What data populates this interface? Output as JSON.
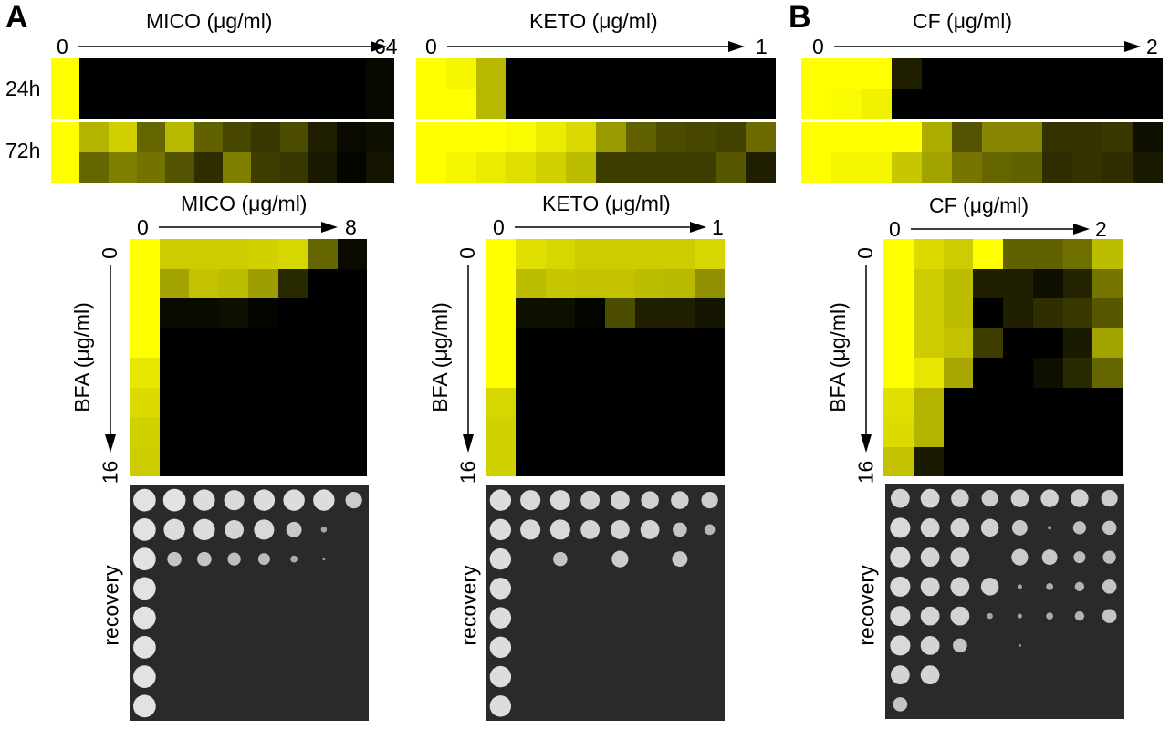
{
  "panels": {
    "a": "A",
    "b": "B"
  },
  "top": {
    "mico": {
      "title": "MICO (μg/ml)",
      "min": "0",
      "max": "64"
    },
    "keto": {
      "title": "KETO (μg/ml)",
      "min": "0",
      "max": "1"
    },
    "cf": {
      "title": "CF (μg/ml)",
      "min": "0",
      "max": "2"
    },
    "rows": [
      "24h",
      "72h"
    ]
  },
  "bottom": {
    "mico": {
      "title": "MICO (μg/ml)",
      "min": "0",
      "max": "8"
    },
    "keto": {
      "title": "KETO (μg/ml)",
      "min": "0",
      "max": "1"
    },
    "cf": {
      "title": "CF (μg/ml)",
      "min": "0",
      "max": "2"
    },
    "bfa": {
      "label": "BFA (μg/ml)",
      "min": "0",
      "max": "16"
    },
    "recovery": "recovery"
  },
  "colors": {
    "high_growth": "#ffff00",
    "no_growth": "#000000",
    "plate_bg": "#2a2a2a",
    "colony": "#e6e6e6"
  },
  "chart_data": [
    {
      "type": "heatmap",
      "drug": "MICO",
      "time": "24h",
      "values": [
        [
          1,
          0,
          0,
          0,
          0,
          0,
          0,
          0,
          0,
          0,
          0,
          0.03
        ],
        [
          1,
          0,
          0,
          0,
          0,
          0,
          0,
          0,
          0,
          0,
          0,
          0.03
        ]
      ]
    },
    {
      "type": "heatmap",
      "drug": "MICO",
      "time": "72h",
      "values": [
        [
          1,
          0.7,
          0.82,
          0.4,
          0.72,
          0.38,
          0.28,
          0.22,
          0.3,
          0.12,
          0.04,
          0.06
        ],
        [
          1,
          0.4,
          0.5,
          0.45,
          0.32,
          0.18,
          0.5,
          0.24,
          0.22,
          0.1,
          0.02,
          0.08
        ]
      ]
    },
    {
      "type": "heatmap",
      "drug": "KETO",
      "time": "24h",
      "values": [
        [
          1,
          0.96,
          0.72,
          0,
          0,
          0,
          0,
          0,
          0,
          0,
          0,
          0
        ],
        [
          1,
          1,
          0.72,
          0,
          0,
          0,
          0,
          0,
          0,
          0,
          0,
          0
        ]
      ]
    },
    {
      "type": "heatmap",
      "drug": "KETO",
      "time": "72h",
      "values": [
        [
          1,
          1,
          1,
          0.98,
          0.92,
          0.85,
          0.6,
          0.38,
          0.3,
          0.28,
          0.26,
          0.42
        ],
        [
          1,
          0.96,
          0.92,
          0.88,
          0.82,
          0.74,
          0.24,
          0.24,
          0.24,
          0.24,
          0.34,
          0.12
        ]
      ]
    },
    {
      "type": "heatmap",
      "drug": "CF",
      "time": "24h",
      "values": [
        [
          1,
          1,
          1,
          0.12,
          0,
          0,
          0,
          0,
          0,
          0,
          0,
          0
        ],
        [
          1,
          0.98,
          0.94,
          0,
          0,
          0,
          0,
          0,
          0,
          0,
          0,
          0
        ]
      ]
    },
    {
      "type": "heatmap",
      "drug": "CF",
      "time": "72h",
      "values": [
        [
          1,
          1,
          1,
          1,
          0.68,
          0.32,
          0.52,
          0.52,
          0.2,
          0.2,
          0.22,
          0.06
        ],
        [
          1,
          0.96,
          0.96,
          0.78,
          0.64,
          0.46,
          0.4,
          0.38,
          0.18,
          0.2,
          0.18,
          0.1
        ]
      ]
    },
    {
      "type": "heatmap",
      "drug": "MICO",
      "cross": "BFA",
      "values": [
        [
          1,
          0.8,
          0.8,
          0.8,
          0.82,
          0.84,
          0.4,
          0.04
        ],
        [
          1,
          0.64,
          0.76,
          0.74,
          0.62,
          0.16,
          0,
          0
        ],
        [
          1,
          0.04,
          0.04,
          0.06,
          0.02,
          0,
          0,
          0
        ],
        [
          1,
          0,
          0,
          0,
          0,
          0,
          0,
          0
        ],
        [
          0.9,
          0,
          0,
          0,
          0,
          0,
          0,
          0
        ],
        [
          0.86,
          0,
          0,
          0,
          0,
          0,
          0,
          0
        ],
        [
          0.82,
          0,
          0,
          0,
          0,
          0,
          0,
          0
        ],
        [
          0.8,
          0,
          0,
          0,
          0,
          0,
          0,
          0
        ]
      ]
    },
    {
      "type": "heatmap",
      "drug": "KETO",
      "cross": "BFA",
      "values": [
        [
          1,
          0.88,
          0.84,
          0.8,
          0.8,
          0.8,
          0.8,
          0.84
        ],
        [
          1,
          0.74,
          0.78,
          0.76,
          0.76,
          0.74,
          0.72,
          0.56
        ],
        [
          1,
          0.06,
          0.06,
          0.02,
          0.3,
          0.12,
          0.12,
          0.08
        ],
        [
          1,
          0,
          0,
          0,
          0,
          0,
          0,
          0
        ],
        [
          1,
          0,
          0,
          0,
          0,
          0,
          0,
          0
        ],
        [
          0.84,
          0,
          0,
          0,
          0,
          0,
          0,
          0
        ],
        [
          0.82,
          0,
          0,
          0,
          0,
          0,
          0,
          0
        ],
        [
          0.82,
          0,
          0,
          0,
          0,
          0,
          0,
          0
        ]
      ]
    },
    {
      "type": "heatmap",
      "drug": "CF",
      "cross": "BFA",
      "values": [
        [
          1,
          0.86,
          0.8,
          1,
          0.38,
          0.38,
          0.44,
          0.74
        ],
        [
          1,
          0.8,
          0.74,
          0.12,
          0.12,
          0.06,
          0.14,
          0.46
        ],
        [
          1,
          0.8,
          0.74,
          0,
          0.12,
          0.18,
          0.22,
          0.34
        ],
        [
          1,
          0.8,
          0.76,
          0.24,
          0,
          0,
          0.1,
          0.64
        ],
        [
          1,
          0.9,
          0.66,
          0,
          0,
          0.06,
          0.16,
          0.4
        ],
        [
          0.88,
          0.7,
          0,
          0,
          0,
          0,
          0,
          0
        ],
        [
          0.86,
          0.7,
          0,
          0,
          0,
          0,
          0,
          0
        ],
        [
          0.76,
          0.1,
          0,
          0,
          0,
          0,
          0,
          0
        ]
      ]
    },
    {
      "type": "table",
      "drug": "MICO",
      "content": "recovery plate colony size (0-1)",
      "values": [
        [
          0.95,
          0.95,
          0.9,
          0.85,
          0.9,
          0.9,
          0.9,
          0.7
        ],
        [
          0.95,
          0.9,
          0.9,
          0.8,
          0.85,
          0.65,
          0.25,
          0
        ],
        [
          0.95,
          0.6,
          0.6,
          0.55,
          0.5,
          0.3,
          0.1,
          0
        ],
        [
          0.95,
          0,
          0,
          0,
          0,
          0,
          0,
          0
        ],
        [
          0.95,
          0,
          0,
          0,
          0,
          0,
          0,
          0
        ],
        [
          0.95,
          0,
          0,
          0,
          0,
          0,
          0,
          0
        ],
        [
          0.95,
          0,
          0,
          0,
          0,
          0,
          0,
          0
        ],
        [
          0.95,
          0,
          0,
          0,
          0,
          0,
          0,
          0
        ]
      ]
    },
    {
      "type": "table",
      "drug": "KETO",
      "content": "recovery plate colony size (0-1)",
      "values": [
        [
          0.9,
          0.85,
          0.85,
          0.8,
          0.8,
          0.75,
          0.75,
          0.7
        ],
        [
          0.9,
          0.85,
          0.85,
          0.8,
          0.8,
          0.8,
          0.6,
          0.45
        ],
        [
          0.9,
          0,
          0.6,
          0,
          0.7,
          0,
          0.65,
          0
        ],
        [
          0.9,
          0,
          0,
          0,
          0,
          0,
          0,
          0
        ],
        [
          0.9,
          0,
          0,
          0,
          0,
          0,
          0,
          0
        ],
        [
          0.9,
          0,
          0,
          0,
          0,
          0,
          0,
          0
        ],
        [
          0.9,
          0,
          0,
          0,
          0,
          0,
          0,
          0
        ],
        [
          0.9,
          0,
          0,
          0,
          0,
          0,
          0,
          0
        ]
      ]
    },
    {
      "type": "table",
      "drug": "CF",
      "content": "recovery plate colony size (0-1)",
      "values": [
        [
          0.8,
          0.8,
          0.75,
          0.7,
          0.75,
          0.75,
          0.75,
          0.7
        ],
        [
          0.85,
          0.8,
          0.8,
          0.75,
          0.65,
          0.15,
          0.55,
          0.6
        ],
        [
          0.85,
          0.8,
          0.8,
          0,
          0.7,
          0.65,
          0.5,
          0.55
        ],
        [
          0.85,
          0.8,
          0.8,
          0.75,
          0.2,
          0.3,
          0.4,
          0.6
        ],
        [
          0.85,
          0.8,
          0.8,
          0.25,
          0.2,
          0.3,
          0.4,
          0.6
        ],
        [
          0.85,
          0.8,
          0.6,
          0,
          0.1,
          0,
          0,
          0
        ],
        [
          0.8,
          0.8,
          0,
          0,
          0,
          0,
          0,
          0
        ],
        [
          0.6,
          0,
          0,
          0,
          0,
          0,
          0,
          0
        ]
      ]
    }
  ]
}
